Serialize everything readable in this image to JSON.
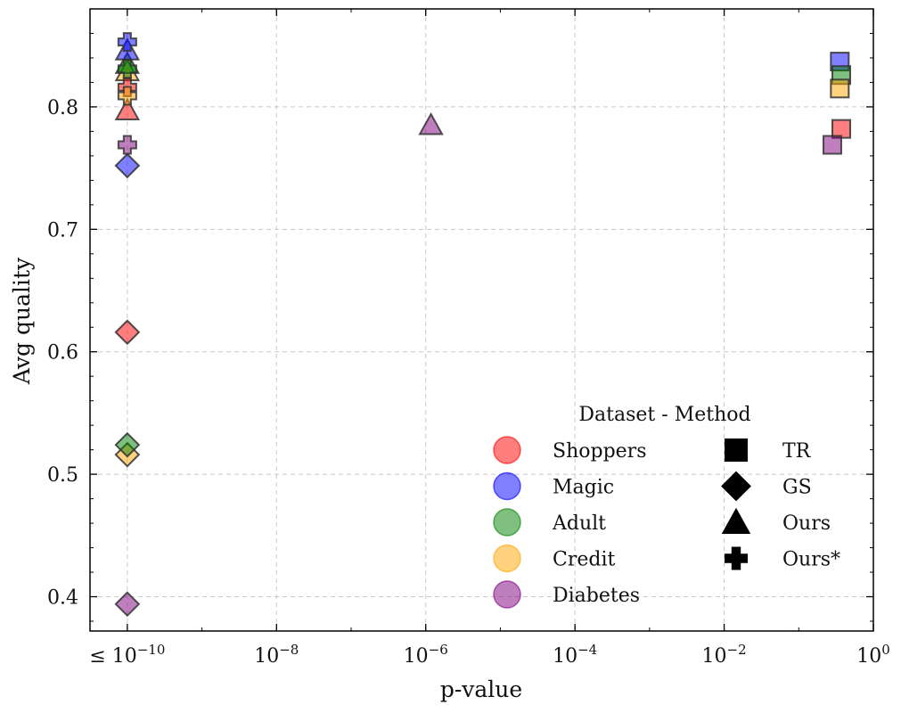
{
  "chart_data": {
    "type": "scatter",
    "xlabel": "p-value",
    "ylabel": "Avg quality",
    "x_scale": "log10",
    "xlim_log10": [
      -10.5,
      0
    ],
    "ylim": [
      0.372,
      0.88
    ],
    "grid": true,
    "x_ticks": [
      {
        "exp": -10,
        "prefix": "≤ ",
        "base": "10",
        "sup": "−10"
      },
      {
        "exp": -8,
        "prefix": "",
        "base": "10",
        "sup": "−8"
      },
      {
        "exp": -6,
        "prefix": "",
        "base": "10",
        "sup": "−6"
      },
      {
        "exp": -4,
        "prefix": "",
        "base": "10",
        "sup": "−4"
      },
      {
        "exp": -2,
        "prefix": "",
        "base": "10",
        "sup": "−2"
      },
      {
        "exp": 0,
        "prefix": "",
        "base": "10",
        "sup": "0"
      }
    ],
    "y_ticks": [
      {
        "value": 0.4,
        "label": "0.4"
      },
      {
        "value": 0.5,
        "label": "0.5"
      },
      {
        "value": 0.6,
        "label": "0.6"
      },
      {
        "value": 0.7,
        "label": "0.7"
      },
      {
        "value": 0.8,
        "label": "0.8"
      }
    ],
    "datasets": [
      {
        "name": "Shoppers",
        "color": "#ff0000"
      },
      {
        "name": "Magic",
        "color": "#0000ff"
      },
      {
        "name": "Adult",
        "color": "#008000"
      },
      {
        "name": "Credit",
        "color": "#ffa500"
      },
      {
        "name": "Diabetes",
        "color": "#800080"
      }
    ],
    "methods": [
      {
        "name": "TR",
        "marker": "square"
      },
      {
        "name": "GS",
        "marker": "diamond"
      },
      {
        "name": "Ours",
        "marker": "triangle"
      },
      {
        "name": "Ours*",
        "marker": "plus"
      }
    ],
    "legend": {
      "title": "Dataset - Method",
      "position": "lower-right"
    },
    "points": [
      {
        "dataset": "Magic",
        "method": "TR",
        "log10_p": -0.45,
        "quality": 0.837
      },
      {
        "dataset": "Adult",
        "method": "TR",
        "log10_p": -0.43,
        "quality": 0.826
      },
      {
        "dataset": "Credit",
        "method": "TR",
        "log10_p": -0.45,
        "quality": 0.815
      },
      {
        "dataset": "Shoppers",
        "method": "TR",
        "log10_p": -0.43,
        "quality": 0.782
      },
      {
        "dataset": "Diabetes",
        "method": "TR",
        "log10_p": -0.55,
        "quality": 0.769
      },
      {
        "dataset": "Diabetes",
        "method": "GS",
        "log10_p": -10,
        "quality": 0.394
      },
      {
        "dataset": "Credit",
        "method": "GS",
        "log10_p": -10,
        "quality": 0.516
      },
      {
        "dataset": "Adult",
        "method": "GS",
        "log10_p": -10,
        "quality": 0.524
      },
      {
        "dataset": "Shoppers",
        "method": "GS",
        "log10_p": -10,
        "quality": 0.616
      },
      {
        "dataset": "Magic",
        "method": "GS",
        "log10_p": -10,
        "quality": 0.752
      },
      {
        "dataset": "Shoppers",
        "method": "Ours",
        "log10_p": -10,
        "quality": 0.797
      },
      {
        "dataset": "Credit",
        "method": "Ours",
        "log10_p": -10,
        "quality": 0.829
      },
      {
        "dataset": "Adult",
        "method": "Ours",
        "log10_p": -10,
        "quality": 0.835
      },
      {
        "dataset": "Magic",
        "method": "Ours",
        "log10_p": -10,
        "quality": 0.846
      },
      {
        "dataset": "Diabetes",
        "method": "Ours",
        "log10_p": -5.93,
        "quality": 0.785
      },
      {
        "dataset": "Magic",
        "method": "Ours*",
        "log10_p": -10,
        "quality": 0.853
      },
      {
        "dataset": "Adult",
        "method": "Ours*",
        "log10_p": -10,
        "quality": 0.831
      },
      {
        "dataset": "Shoppers",
        "method": "Ours*",
        "log10_p": -10,
        "quality": 0.816
      },
      {
        "dataset": "Credit",
        "method": "Ours*",
        "log10_p": -10,
        "quality": 0.809
      },
      {
        "dataset": "Diabetes",
        "method": "Ours*",
        "log10_p": -10,
        "quality": 0.769
      }
    ]
  }
}
